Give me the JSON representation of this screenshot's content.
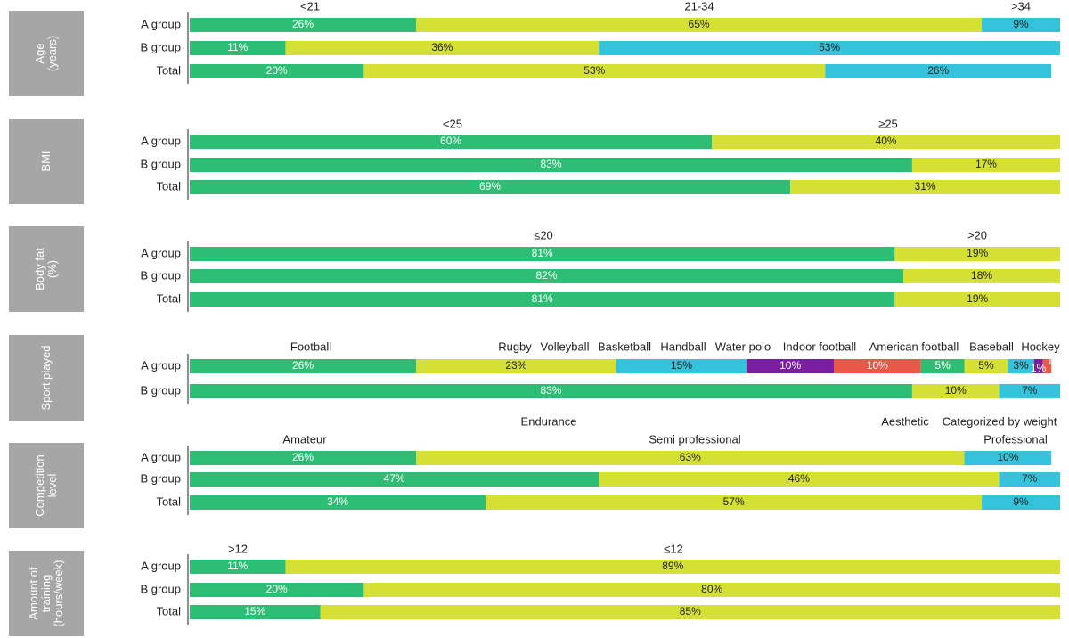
{
  "chart_data": {
    "type": "stacked-bar",
    "colors": {
      "green": "#2ebd74",
      "yellow": "#d5e034",
      "cyan": "#34c3da",
      "purple": "#7a1fa2",
      "red": "#e8594a",
      "panel": "#a6a6a6",
      "axis": "#222222",
      "text": "#222222",
      "panel_text": "#ffffff",
      "label_light": "#ffffff",
      "label_dark": "#222222"
    },
    "panels": [
      {
        "title_lines": [
          "Age",
          "(years)"
        ],
        "categories": [
          "<21",
          "21-34",
          ">34"
        ],
        "rows": [
          {
            "label": "A group",
            "values": [
              26,
              65,
              9
            ]
          },
          {
            "label": "B group",
            "values": [
              11,
              36,
              53
            ]
          },
          {
            "label": "Total",
            "values": [
              20,
              53,
              26
            ]
          }
        ]
      },
      {
        "title_lines": [
          "BMI"
        ],
        "categories": [
          "<25",
          "≥25"
        ],
        "rows": [
          {
            "label": "A group",
            "values": [
              60,
              40
            ]
          },
          {
            "label": "B group",
            "values": [
              83,
              17
            ]
          },
          {
            "label": "Total",
            "values": [
              69,
              31
            ]
          }
        ]
      },
      {
        "title_lines": [
          "Body fat",
          "(%)"
        ],
        "categories": [
          "≤20",
          ">20"
        ],
        "rows": [
          {
            "label": "A group",
            "values": [
              81,
              19
            ]
          },
          {
            "label": "B group",
            "values": [
              82,
              18
            ]
          },
          {
            "label": "Total",
            "values": [
              81,
              19
            ]
          }
        ]
      },
      {
        "title_lines": [
          "Sport played"
        ],
        "categories": [
          "Football",
          "Rugby",
          "Volleyball",
          "Basketball",
          "Handball",
          "Water polo",
          "Indoor football",
          "American football",
          "Baseball",
          "Hockey"
        ],
        "b_categories": [
          "Endurance",
          "Aesthetic",
          "Categorized by weight"
        ],
        "rows": [
          {
            "label": "A group",
            "values": [
              26,
              23,
              15,
              10,
              10,
              5,
              5,
              3,
              1,
              1
            ],
            "labels": [
              "26%",
              "23%",
              "15%",
              "10%",
              "10%",
              "5%",
              "5%",
              "3%",
              "1%",
              "1%"
            ]
          },
          {
            "label": "B group",
            "values": [
              83,
              10,
              7
            ],
            "labels": [
              "83%",
              "10%",
              "7%"
            ]
          }
        ]
      },
      {
        "title_lines": [
          "Competition",
          "level"
        ],
        "categories": [
          "Amateur",
          "Semi professional",
          "Professional"
        ],
        "rows": [
          {
            "label": "A group",
            "values": [
              26,
              63,
              10
            ]
          },
          {
            "label": "B group",
            "values": [
              47,
              46,
              7
            ]
          },
          {
            "label": "Total",
            "values": [
              34,
              57,
              9
            ]
          }
        ]
      },
      {
        "title_lines": [
          "Amount of",
          "training",
          "(hours/week)"
        ],
        "categories": [
          ">12",
          "≤12"
        ],
        "rows": [
          {
            "label": "A group",
            "values": [
              11,
              89
            ]
          },
          {
            "label": "B group",
            "values": [
              20,
              80
            ]
          },
          {
            "label": "Total",
            "values": [
              15,
              85
            ]
          }
        ]
      }
    ]
  }
}
